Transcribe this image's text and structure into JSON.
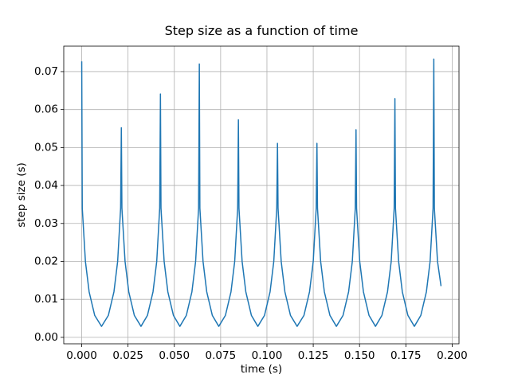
{
  "chart_data": {
    "type": "line",
    "title": "Step size as a function of time",
    "x_label": "time (s)",
    "y_label": "step size (s)",
    "grid": true,
    "xlim": [
      -0.0097,
      0.2037
    ],
    "ylim": [
      -0.0017,
      0.0767
    ],
    "xticks": [
      {
        "value": 0,
        "label": "0.000"
      },
      {
        "value": 0.025,
        "label": "0.025"
      },
      {
        "value": 0.05,
        "label": "0.050"
      },
      {
        "value": 0.075,
        "label": "0.075"
      },
      {
        "value": 0.1,
        "label": "0.100"
      },
      {
        "value": 0.125,
        "label": "0.125"
      },
      {
        "value": 0.15,
        "label": "0.150"
      },
      {
        "value": 0.175,
        "label": "0.175"
      },
      {
        "value": 0.2,
        "label": "0.200"
      }
    ],
    "yticks": [
      {
        "value": 0,
        "label": "0.00"
      },
      {
        "value": 0.01,
        "label": "0.01"
      },
      {
        "value": 0.02,
        "label": "0.02"
      },
      {
        "value": 0.03,
        "label": "0.03"
      },
      {
        "value": 0.04,
        "label": "0.04"
      },
      {
        "value": 0.05,
        "label": "0.05"
      },
      {
        "value": 0.06,
        "label": "0.06"
      },
      {
        "value": 0.07,
        "label": "0.07"
      }
    ],
    "series": [
      {
        "color": "#1f77b4",
        "x": [
          0,
          0.0003,
          0.002,
          0.004,
          0.007,
          0.0107,
          0.0144,
          0.0174,
          0.0194,
          0.021,
          0.0214,
          0.0217,
          0.0234,
          0.0254,
          0.0284,
          0.032,
          0.0355,
          0.0385,
          0.0405,
          0.0421,
          0.0425,
          0.0428,
          0.0445,
          0.0465,
          0.0495,
          0.053,
          0.0565,
          0.0595,
          0.0615,
          0.0631,
          0.0635,
          0.0638,
          0.0655,
          0.0675,
          0.0705,
          0.074,
          0.0776,
          0.0806,
          0.0826,
          0.0842,
          0.0846,
          0.0849,
          0.0866,
          0.0886,
          0.0916,
          0.0951,
          0.0987,
          0.1017,
          0.1037,
          0.1053,
          0.1057,
          0.106,
          0.1077,
          0.1097,
          0.1127,
          0.1163,
          0.12,
          0.123,
          0.125,
          0.1266,
          0.127,
          0.1273,
          0.129,
          0.131,
          0.134,
          0.1375,
          0.1411,
          0.1441,
          0.1461,
          0.1477,
          0.1481,
          0.1484,
          0.1501,
          0.1521,
          0.1551,
          0.1586,
          0.1621,
          0.1651,
          0.1671,
          0.1687,
          0.1691,
          0.1694,
          0.1711,
          0.1731,
          0.1761,
          0.1796,
          0.1831,
          0.1861,
          0.1881,
          0.1897,
          0.1901,
          0.1904,
          0.1921,
          0.194
        ],
        "values": [
          0.0727,
          0.034,
          0.02,
          0.012,
          0.0058,
          0.0029,
          0.0058,
          0.012,
          0.02,
          0.034,
          0.0552,
          0.034,
          0.02,
          0.012,
          0.0058,
          0.0029,
          0.0058,
          0.012,
          0.02,
          0.034,
          0.0641,
          0.034,
          0.02,
          0.012,
          0.0058,
          0.0029,
          0.0058,
          0.012,
          0.02,
          0.034,
          0.072,
          0.034,
          0.02,
          0.012,
          0.0058,
          0.0029,
          0.0058,
          0.012,
          0.02,
          0.034,
          0.0573,
          0.034,
          0.02,
          0.012,
          0.0058,
          0.0029,
          0.0058,
          0.012,
          0.02,
          0.034,
          0.0511,
          0.034,
          0.02,
          0.012,
          0.0058,
          0.0029,
          0.0058,
          0.012,
          0.02,
          0.034,
          0.0511,
          0.034,
          0.02,
          0.012,
          0.0058,
          0.0029,
          0.0058,
          0.012,
          0.02,
          0.034,
          0.0547,
          0.034,
          0.02,
          0.012,
          0.0058,
          0.0029,
          0.0058,
          0.012,
          0.02,
          0.034,
          0.0629,
          0.034,
          0.02,
          0.012,
          0.0058,
          0.0029,
          0.0058,
          0.012,
          0.02,
          0.034,
          0.0733,
          0.034,
          0.02,
          0.0135
        ]
      }
    ]
  }
}
